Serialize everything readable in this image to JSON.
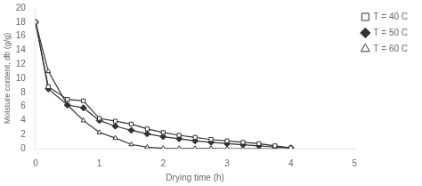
{
  "chart_data": {
    "type": "line",
    "xlabel": "Drying time (h)",
    "ylabel": "Moisture content, db (g/g)",
    "xlim": [
      0,
      5
    ],
    "ylim": [
      0,
      20
    ],
    "xticks": [
      0,
      1,
      2,
      3,
      4,
      5
    ],
    "yticks": [
      0,
      2,
      4,
      6,
      8,
      10,
      12,
      14,
      16,
      18,
      20
    ],
    "grid": false,
    "legend": "upper-right",
    "x": [
      0,
      0.2,
      0.5,
      0.75,
      1.0,
      1.25,
      1.5,
      1.75,
      2.0,
      2.25,
      2.5,
      2.75,
      3.0,
      3.25,
      3.5,
      3.75,
      4.0
    ],
    "series": [
      {
        "name": "T = 40 C",
        "color": "#333333",
        "marker": "open-square",
        "values": [
          18.0,
          8.8,
          7.0,
          6.8,
          4.3,
          3.9,
          3.5,
          2.8,
          2.3,
          1.9,
          1.6,
          1.3,
          1.1,
          0.9,
          0.7,
          0.4,
          0.1
        ]
      },
      {
        "name": "T = 50 C",
        "color": "#333333",
        "marker": "diamond",
        "values": [
          18.0,
          8.5,
          6.2,
          5.8,
          4.0,
          3.2,
          2.6,
          2.1,
          1.7,
          1.4,
          1.1,
          0.9,
          0.7,
          0.55,
          0.4,
          0.25,
          0.1
        ]
      },
      {
        "name": "T = 60 C",
        "color": "#333333",
        "marker": "open-triangle",
        "values": [
          18.0,
          11.0,
          6.2,
          4.0,
          2.3,
          1.5,
          0.6,
          0.2,
          0.05,
          0.03,
          0.02,
          0.01,
          0.0,
          0.0,
          0.0,
          0.0,
          0.0
        ]
      }
    ]
  }
}
